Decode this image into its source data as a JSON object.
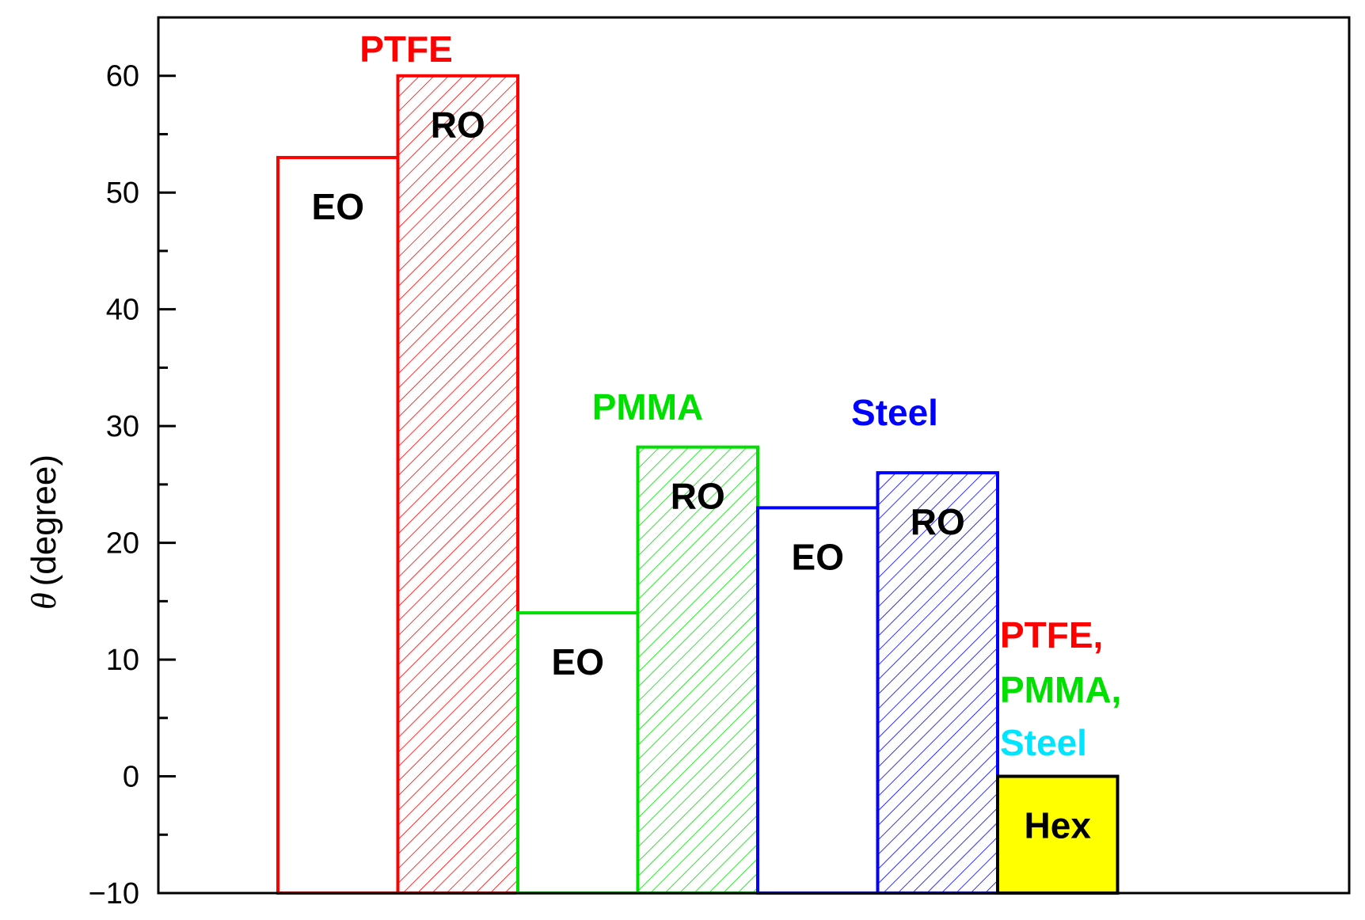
{
  "chart_data": {
    "type": "bar",
    "ylabel": "(degree)",
    "ylabel_symbol": "θ",
    "ylim": [
      -10,
      65
    ],
    "yticks": [
      -10,
      0,
      10,
      20,
      30,
      40,
      50,
      60
    ],
    "ytick_labels": [
      "−10",
      "0",
      "10",
      "20",
      "30",
      "40",
      "50",
      "60"
    ],
    "grid": false,
    "bars": [
      {
        "label": "EO",
        "group": "PTFE",
        "value": 53,
        "color": "#ff0000",
        "hatched": false
      },
      {
        "label": "RO",
        "group": "PTFE",
        "value": 60,
        "color": "#ff0000",
        "hatched": true
      },
      {
        "label": "EO",
        "group": "PMMA",
        "value": 14,
        "color": "#00e000",
        "hatched": false
      },
      {
        "label": "RO",
        "group": "PMMA",
        "value": 28.2,
        "color": "#00e000",
        "hatched": true
      },
      {
        "label": "EO",
        "group": "Steel",
        "value": 23,
        "color": "#0000ff",
        "hatched": false
      },
      {
        "label": "RO",
        "group": "Steel",
        "value": 26,
        "color": "#0000ff",
        "hatched": true
      },
      {
        "label": "Hex",
        "group": "PTFE, PMMA, Steel",
        "value": 0,
        "color": "#000000",
        "fill": "#ffff00",
        "hatched": false
      }
    ],
    "annotations": [
      {
        "text": "PTFE",
        "color": "#ff0000"
      },
      {
        "text": "PMMA",
        "color": "#00e000"
      },
      {
        "text": "Steel",
        "color": "#0000ff"
      },
      {
        "text": "PTFE,",
        "color": "#ff0000"
      },
      {
        "text": "PMMA,",
        "color": "#00e000"
      },
      {
        "text": "Steel",
        "color": "#00e5ff"
      }
    ]
  }
}
